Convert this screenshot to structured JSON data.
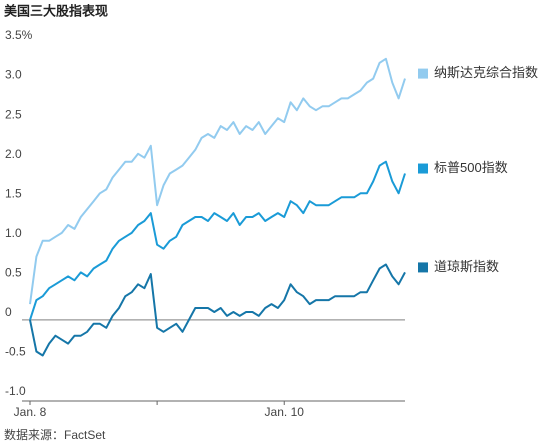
{
  "chart_data": {
    "type": "line",
    "title": "美国三大股指表现",
    "source": "数据来源：FactSet",
    "categories": [
      "Jan. 8",
      null,
      null,
      null,
      null,
      null,
      null,
      null,
      null,
      null,
      null,
      null,
      null,
      null,
      null,
      null,
      null,
      null,
      null,
      null,
      null,
      null,
      null,
      null,
      null,
      null,
      null,
      null,
      null,
      null,
      null,
      null,
      null,
      null,
      null,
      null,
      null,
      null,
      null,
      null,
      "Jan. 10",
      null,
      null,
      null,
      null,
      null,
      null,
      null,
      null,
      null,
      null,
      null,
      null,
      null,
      null,
      null,
      null,
      null,
      null,
      null
    ],
    "series": [
      {
        "name": "纳斯达克综合指数",
        "color": "#92cbef",
        "values": [
          0.2,
          0.8,
          1.0,
          1.0,
          1.05,
          1.1,
          1.2,
          1.15,
          1.3,
          1.4,
          1.5,
          1.6,
          1.65,
          1.8,
          1.9,
          2.0,
          2.0,
          2.1,
          2.05,
          2.2,
          1.45,
          1.7,
          1.85,
          1.9,
          1.95,
          2.05,
          2.15,
          2.3,
          2.35,
          2.3,
          2.45,
          2.4,
          2.5,
          2.35,
          2.45,
          2.4,
          2.5,
          2.35,
          2.45,
          2.55,
          2.5,
          2.75,
          2.65,
          2.8,
          2.7,
          2.65,
          2.7,
          2.7,
          2.75,
          2.8,
          2.8,
          2.85,
          2.9,
          3.0,
          3.05,
          3.25,
          3.3,
          3.0,
          2.8,
          3.05
        ]
      },
      {
        "name": "标普500指数",
        "color": "#1a9bd7",
        "values": [
          0.0,
          0.25,
          0.3,
          0.4,
          0.45,
          0.5,
          0.55,
          0.5,
          0.6,
          0.55,
          0.65,
          0.7,
          0.75,
          0.9,
          1.0,
          1.05,
          1.1,
          1.2,
          1.25,
          1.35,
          0.95,
          0.9,
          1.0,
          1.05,
          1.2,
          1.25,
          1.3,
          1.3,
          1.25,
          1.35,
          1.3,
          1.25,
          1.35,
          1.2,
          1.3,
          1.3,
          1.35,
          1.25,
          1.3,
          1.35,
          1.3,
          1.5,
          1.45,
          1.35,
          1.5,
          1.45,
          1.45,
          1.45,
          1.5,
          1.55,
          1.55,
          1.55,
          1.6,
          1.6,
          1.75,
          1.95,
          2.0,
          1.75,
          1.6,
          1.85
        ]
      },
      {
        "name": "道琼斯指数",
        "color": "#1576a8",
        "values": [
          0.0,
          -0.4,
          -0.45,
          -0.3,
          -0.2,
          -0.25,
          -0.3,
          -0.2,
          -0.2,
          -0.15,
          -0.05,
          -0.05,
          -0.1,
          0.05,
          0.15,
          0.3,
          0.35,
          0.45,
          0.4,
          0.58,
          -0.1,
          -0.15,
          -0.1,
          -0.05,
          -0.15,
          0.0,
          0.15,
          0.15,
          0.15,
          0.1,
          0.15,
          0.05,
          0.1,
          0.05,
          0.1,
          0.1,
          0.05,
          0.15,
          0.2,
          0.15,
          0.25,
          0.45,
          0.35,
          0.3,
          0.2,
          0.25,
          0.25,
          0.25,
          0.3,
          0.3,
          0.3,
          0.3,
          0.35,
          0.35,
          0.5,
          0.65,
          0.7,
          0.55,
          0.45,
          0.6
        ]
      }
    ],
    "ylim": [
      -1.0,
      3.5
    ],
    "yticks": [
      {
        "value": -1.0,
        "label": "-1.0"
      },
      -0.5,
      0,
      0.5,
      {
        "value": 1.0,
        "label": "1.0"
      },
      1.5,
      {
        "value": 2.0,
        "label": "2.0"
      },
      2.5,
      {
        "value": 3.0,
        "label": "3.0"
      },
      {
        "value": 3.5,
        "label": "3.5%"
      }
    ],
    "grid": false
  }
}
